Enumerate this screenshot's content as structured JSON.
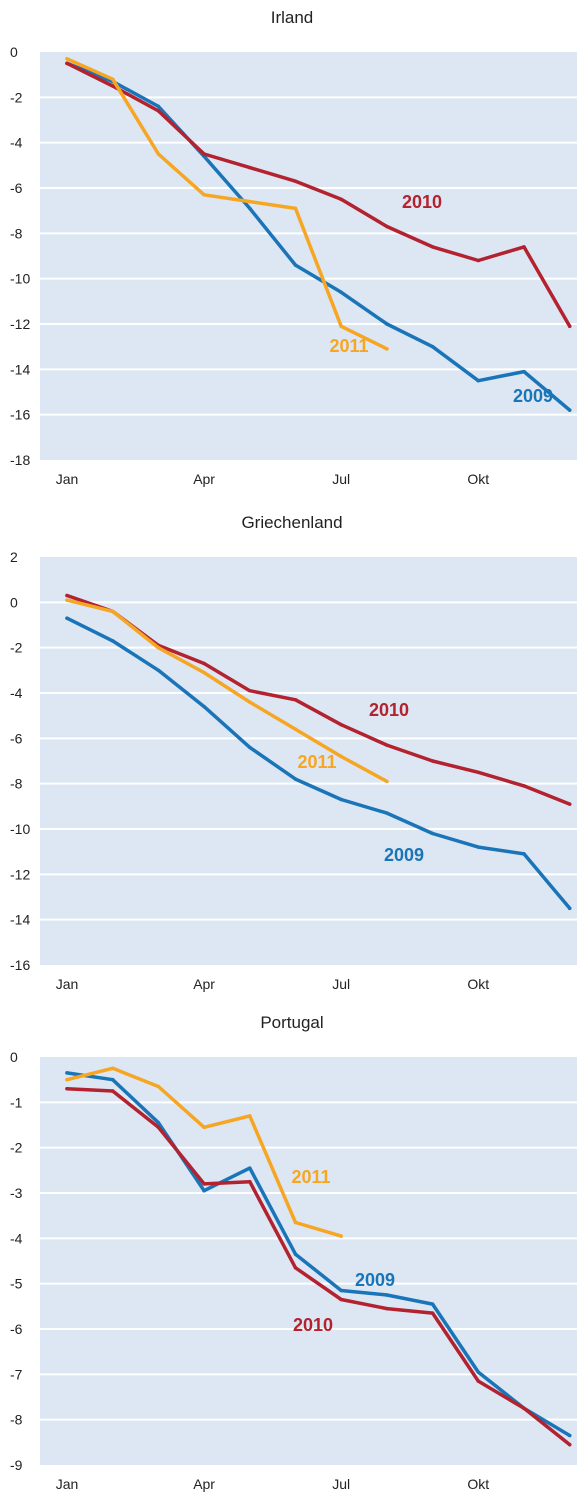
{
  "colors": {
    "plot_bg": "#dde6f3",
    "grid": "#ffffff",
    "s2009": "#1a74b8",
    "s2010": "#b3222f",
    "s2011": "#f6a623"
  },
  "chart_data": [
    {
      "type": "line",
      "title": "Irland",
      "x_tick_labels": [
        "Jan",
        "Apr",
        "Jul",
        "Okt"
      ],
      "x_tick_months": [
        1,
        4,
        7,
        10
      ],
      "ylim": [
        -18,
        0
      ],
      "y_ticks": [
        "0",
        "-2",
        "-4",
        "-6",
        "-8",
        "-10",
        "-12",
        "-14",
        "-16",
        "-18"
      ],
      "series": [
        {
          "name": "2009",
          "color": "#1a74b8",
          "values": [
            -0.5,
            -1.3,
            -2.4,
            -4.6,
            -6.9,
            -9.4,
            -10.6,
            -12.0,
            -13.0,
            -14.5,
            -14.1,
            -15.8
          ]
        },
        {
          "name": "2010",
          "color": "#b3222f",
          "values": [
            -0.5,
            -1.5,
            -2.6,
            -4.5,
            -5.1,
            -5.7,
            -6.5,
            -7.7,
            -8.6,
            -9.2,
            -8.6,
            -12.1
          ]
        },
        {
          "name": "2011",
          "color": "#f6a623",
          "values": [
            -0.3,
            -1.2,
            -4.5,
            -6.3,
            -6.6,
            -6.9,
            -12.1,
            -13.1
          ]
        }
      ]
    },
    {
      "type": "line",
      "title": "Griechenland",
      "x_tick_labels": [
        "Jan",
        "Apr",
        "Jul",
        "Okt"
      ],
      "x_tick_months": [
        1,
        4,
        7,
        10
      ],
      "ylim": [
        -16,
        2
      ],
      "y_ticks": [
        "2",
        "0",
        "-2",
        "-4",
        "-6",
        "-8",
        "-10",
        "-12",
        "-14",
        "-16"
      ],
      "series": [
        {
          "name": "2009",
          "color": "#1a74b8",
          "values": [
            -0.7,
            -1.7,
            -3.0,
            -4.6,
            -6.4,
            -7.8,
            -8.7,
            -9.3,
            -10.2,
            -10.8,
            -11.1,
            -13.5
          ]
        },
        {
          "name": "2010",
          "color": "#b3222f",
          "values": [
            0.3,
            -0.4,
            -1.9,
            -2.7,
            -3.9,
            -4.3,
            -5.4,
            -6.3,
            -7.0,
            -7.5,
            -8.1,
            -8.9
          ]
        },
        {
          "name": "2011",
          "color": "#f6a623",
          "values": [
            0.1,
            -0.4,
            -2.0,
            -3.1,
            -4.4,
            -5.6,
            -6.8,
            -7.9
          ]
        }
      ]
    },
    {
      "type": "line",
      "title": "Portugal",
      "x_tick_labels": [
        "Jan",
        "Apr",
        "Jul",
        "Okt"
      ],
      "x_tick_months": [
        1,
        4,
        7,
        10
      ],
      "ylim": [
        -9,
        0
      ],
      "y_ticks": [
        "0",
        "-1",
        "-2",
        "-3",
        "-4",
        "-5",
        "-6",
        "-7",
        "-8",
        "-9"
      ],
      "series": [
        {
          "name": "2009",
          "color": "#1a74b8",
          "values": [
            -0.35,
            -0.5,
            -1.45,
            -2.95,
            -2.45,
            -4.35,
            -5.15,
            -5.25,
            -5.45,
            -6.95,
            -7.75,
            -8.35
          ]
        },
        {
          "name": "2010",
          "color": "#b3222f",
          "values": [
            -0.7,
            -0.75,
            -1.55,
            -2.8,
            -2.75,
            -4.65,
            -5.35,
            -5.55,
            -5.65,
            -7.15,
            -7.75,
            -8.55
          ]
        },
        {
          "name": "2011",
          "color": "#f6a623",
          "values": [
            -0.5,
            -0.25,
            -0.65,
            -1.55,
            -1.3,
            -3.65,
            -3.95
          ]
        }
      ]
    }
  ]
}
